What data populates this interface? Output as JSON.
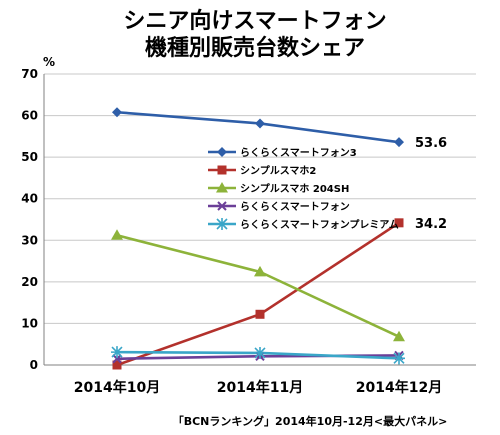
{
  "chart_data": {
    "type": "line",
    "title_line1": "シニア向けスマートフォン",
    "title_line2": "機種別販売台数シェア",
    "unit": "%",
    "categories": [
      "2014年10月",
      "2014年11月",
      "2014年12月"
    ],
    "ylim": [
      0,
      70
    ],
    "yticks": [
      0,
      10,
      20,
      30,
      40,
      50,
      60,
      70
    ],
    "grid": "horizontal",
    "legend_position": "right",
    "series": [
      {
        "name": "らくらくスマートフォン3",
        "values": [
          60.8,
          58.1,
          53.6
        ],
        "color": "#2e5ea8",
        "marker": "diamond"
      },
      {
        "name": "シンプルスマホ2",
        "values": [
          0.0,
          12.2,
          34.2
        ],
        "color": "#b3312c",
        "marker": "square"
      },
      {
        "name": "シンプルスマホ 204SH",
        "values": [
          31.2,
          22.4,
          6.8
        ],
        "color": "#8db33a",
        "marker": "triangle"
      },
      {
        "name": "らくらくスマートフォン",
        "values": [
          1.5,
          2.1,
          2.3
        ],
        "color": "#6b3f98",
        "marker": "x"
      },
      {
        "name": "らくらくスマートフォンプレミアム",
        "values": [
          3.1,
          2.9,
          1.6
        ],
        "color": "#3aa6c8",
        "marker": "star"
      }
    ],
    "annotations": [
      {
        "series": 0,
        "point": 2,
        "text": "53.6"
      },
      {
        "series": 1,
        "point": 2,
        "text": "34.2"
      }
    ],
    "source": "「BCNランキング」2014年10月-12月<最大パネル>"
  }
}
